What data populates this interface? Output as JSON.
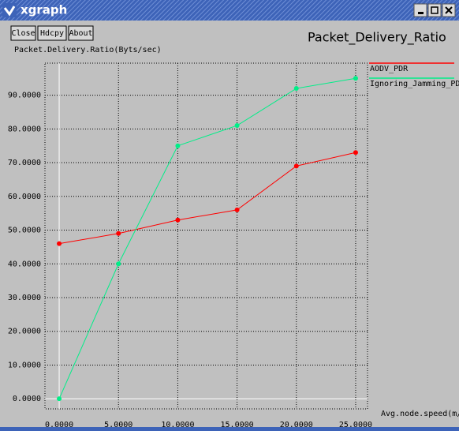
{
  "window": {
    "title": "xgraph",
    "buttons": [
      "Close",
      "Hdcpy",
      "About"
    ]
  },
  "chart_data": {
    "type": "line",
    "title": "Packet_Delivery_Ratio",
    "y_label": "Packet.Delivery.Ratio(Byts/sec)",
    "x_label": "Avg.node.speed(m/sec)",
    "x": [
      0,
      5,
      10,
      15,
      20,
      25
    ],
    "series": [
      {
        "name": "AODV_PDR",
        "color": "#ff0000",
        "values": [
          46,
          49,
          53,
          56,
          69,
          73
        ]
      },
      {
        "name": "Ignoring_Jamming_PDR",
        "color": "#00ee88",
        "values": [
          0,
          40,
          75,
          81,
          92,
          95
        ]
      }
    ],
    "xlim": [
      -1.2,
      26
    ],
    "ylim": [
      -3,
      99.5
    ],
    "xticks": [
      {
        "value": 0,
        "label": "0.0000"
      },
      {
        "value": 5,
        "label": "5.0000"
      },
      {
        "value": 10,
        "label": "10.0000"
      },
      {
        "value": 15,
        "label": "15.0000"
      },
      {
        "value": 20,
        "label": "20.0000"
      },
      {
        "value": 25,
        "label": "25.0000"
      }
    ],
    "yticks": [
      {
        "value": 0,
        "label": "0.0000"
      },
      {
        "value": 10,
        "label": "10.0000"
      },
      {
        "value": 20,
        "label": "20.0000"
      },
      {
        "value": 30,
        "label": "30.0000"
      },
      {
        "value": 40,
        "label": "40.0000"
      },
      {
        "value": 50,
        "label": "50.0000"
      },
      {
        "value": 60,
        "label": "60.0000"
      },
      {
        "value": 70,
        "label": "70.0000"
      },
      {
        "value": 80,
        "label": "80.0000"
      },
      {
        "value": 90,
        "label": "90.0000"
      }
    ],
    "grid": true
  }
}
